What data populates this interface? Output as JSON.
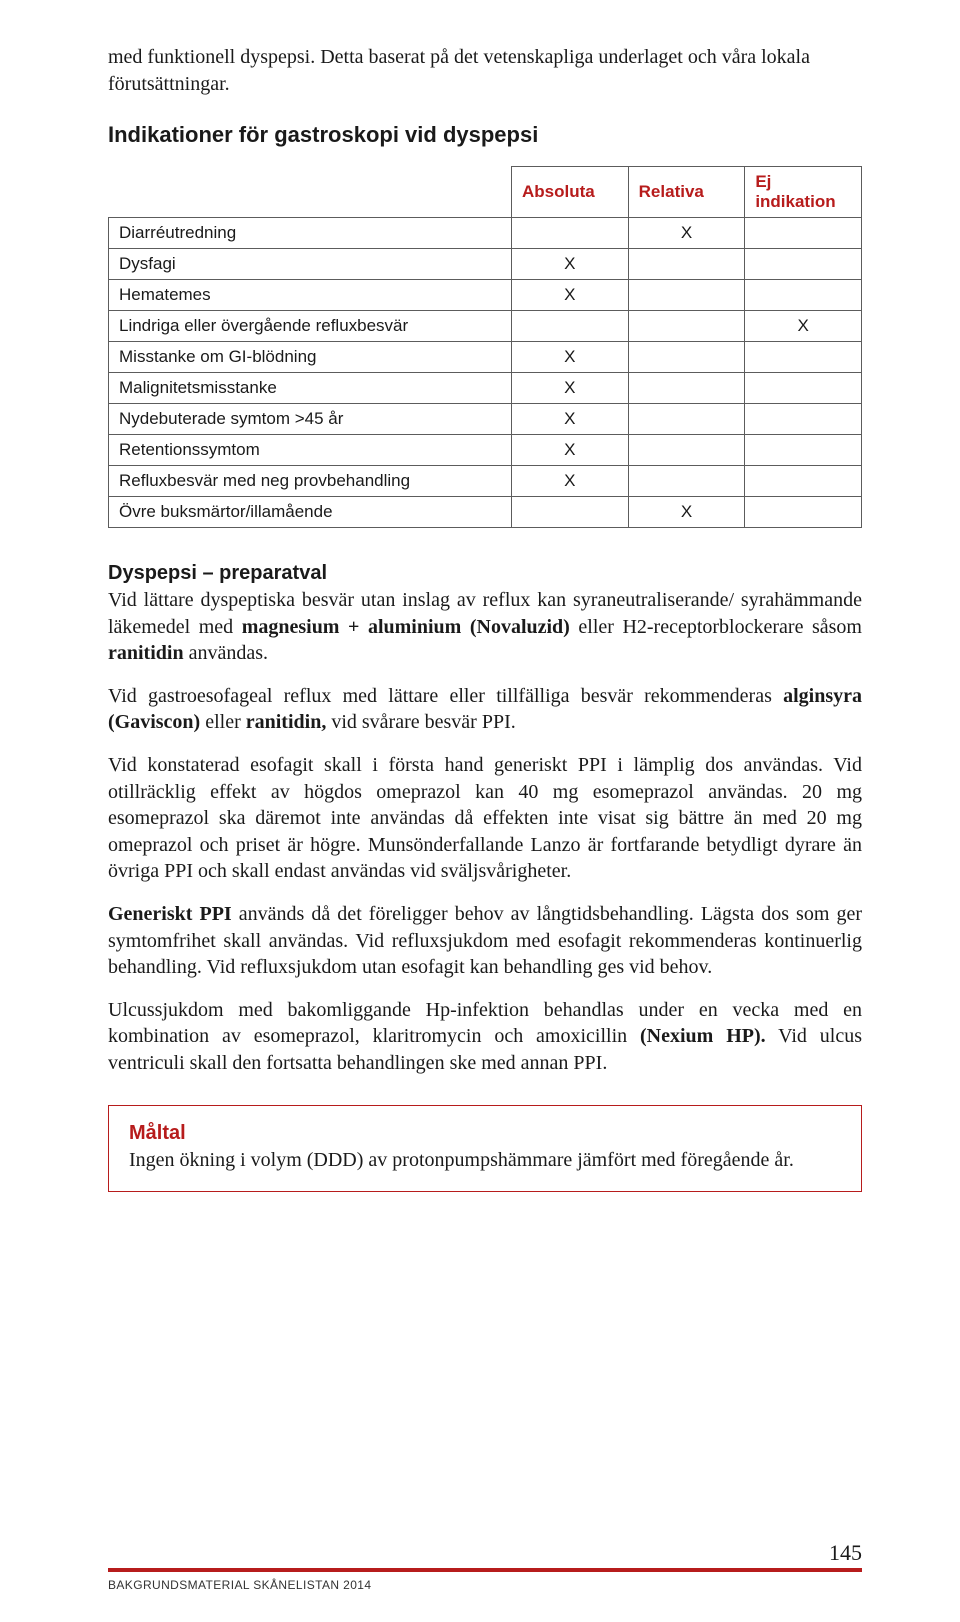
{
  "intro": "med funktionell dyspepsi. Detta baserat på det vetenskapliga underlaget och våra lokala förutsättningar.",
  "heading_indications": "Indikationer för gastroskopi vid dyspepsi",
  "table": {
    "headers": [
      "Absoluta",
      "Relativa",
      "Ej indikation"
    ],
    "rows": [
      {
        "label": "Diarréutredning",
        "marks": [
          "",
          "X",
          ""
        ]
      },
      {
        "label": "Dysfagi",
        "marks": [
          "X",
          "",
          ""
        ]
      },
      {
        "label": "Hematemes",
        "marks": [
          "X",
          "",
          ""
        ]
      },
      {
        "label": "Lindriga eller övergående refluxbesvär",
        "marks": [
          "",
          "",
          "X"
        ]
      },
      {
        "label": "Misstanke om GI-blödning",
        "marks": [
          "X",
          "",
          ""
        ]
      },
      {
        "label": "Malignitetsmisstanke",
        "marks": [
          "X",
          "",
          ""
        ]
      },
      {
        "label": "Nydebuterade symtom >45 år",
        "marks": [
          "X",
          "",
          ""
        ]
      },
      {
        "label": "Retentionssymtom",
        "marks": [
          "X",
          "",
          ""
        ]
      },
      {
        "label": "Refluxbesvär med neg provbehandling",
        "marks": [
          "X",
          "",
          ""
        ]
      },
      {
        "label": "Övre buksmärtor/illamående",
        "marks": [
          "",
          "X",
          ""
        ]
      }
    ]
  },
  "section_title": "Dyspepsi – preparatval",
  "p1_a": "Vid lättare dyspeptiska besvär utan inslag av reflux kan syraneutraliserande/ syrahämmande läkemedel med ",
  "p1_b1": "magnesium + aluminium (Novaluzid)",
  "p1_c": " eller H2-receptorblockerare såsom ",
  "p1_b2": "ranitidin",
  "p1_d": " användas.",
  "p2_a": "Vid gastroesofageal reflux med lättare eller tillfälliga besvär rekommenderas ",
  "p2_b1": "alginsyra (Gaviscon)",
  "p2_c": " eller ",
  "p2_b2": "ranitidin,",
  "p2_d": " vid svårare besvär PPI.",
  "p3": "Vid konstaterad esofagit skall i första hand generiskt PPI i lämplig dos användas. Vid otillräcklig effekt av högdos omeprazol kan 40 mg esomeprazol användas. 20 mg esomeprazol ska däremot inte användas då effekten inte visat sig bättre än med 20 mg omeprazol och priset är högre. Munsönderfallande Lanzo är fortfarande betydligt dyrare än övriga PPI och skall endast användas vid sväljsvårigheter.",
  "p4_b": "Generiskt PPI",
  "p4": " används då det föreligger behov av långtidsbehandling. Lägsta dos som ger symtomfrihet skall användas. Vid refluxsjukdom med esofagit rekommenderas kontinuerlig behandling. Vid refluxsjukdom utan esofagit kan behandling ges vid behov.",
  "p5_a": "Ulcussjukdom med bakomliggande Hp-infektion behandlas under en vecka med en kombination av esomeprazol, klaritromycin och amoxicillin ",
  "p5_b": "(Nexium HP).",
  "p5_c": " Vid ulcus ventriculi skall den fortsatta behandlingen ske med annan PPI.",
  "goal_title": "Måltal",
  "goal_body": "Ingen ökning i volym (DDD) av protonpumpshämmare jämfört med föregående år.",
  "page_num": "145",
  "footer": "BAKGRUNDSMATERIAL SKÅNELISTAN 2014",
  "colors": {
    "accent": "#b71c1c",
    "border": "#5c5c5c",
    "text": "#1a1a1a",
    "bg": "#ffffff"
  }
}
